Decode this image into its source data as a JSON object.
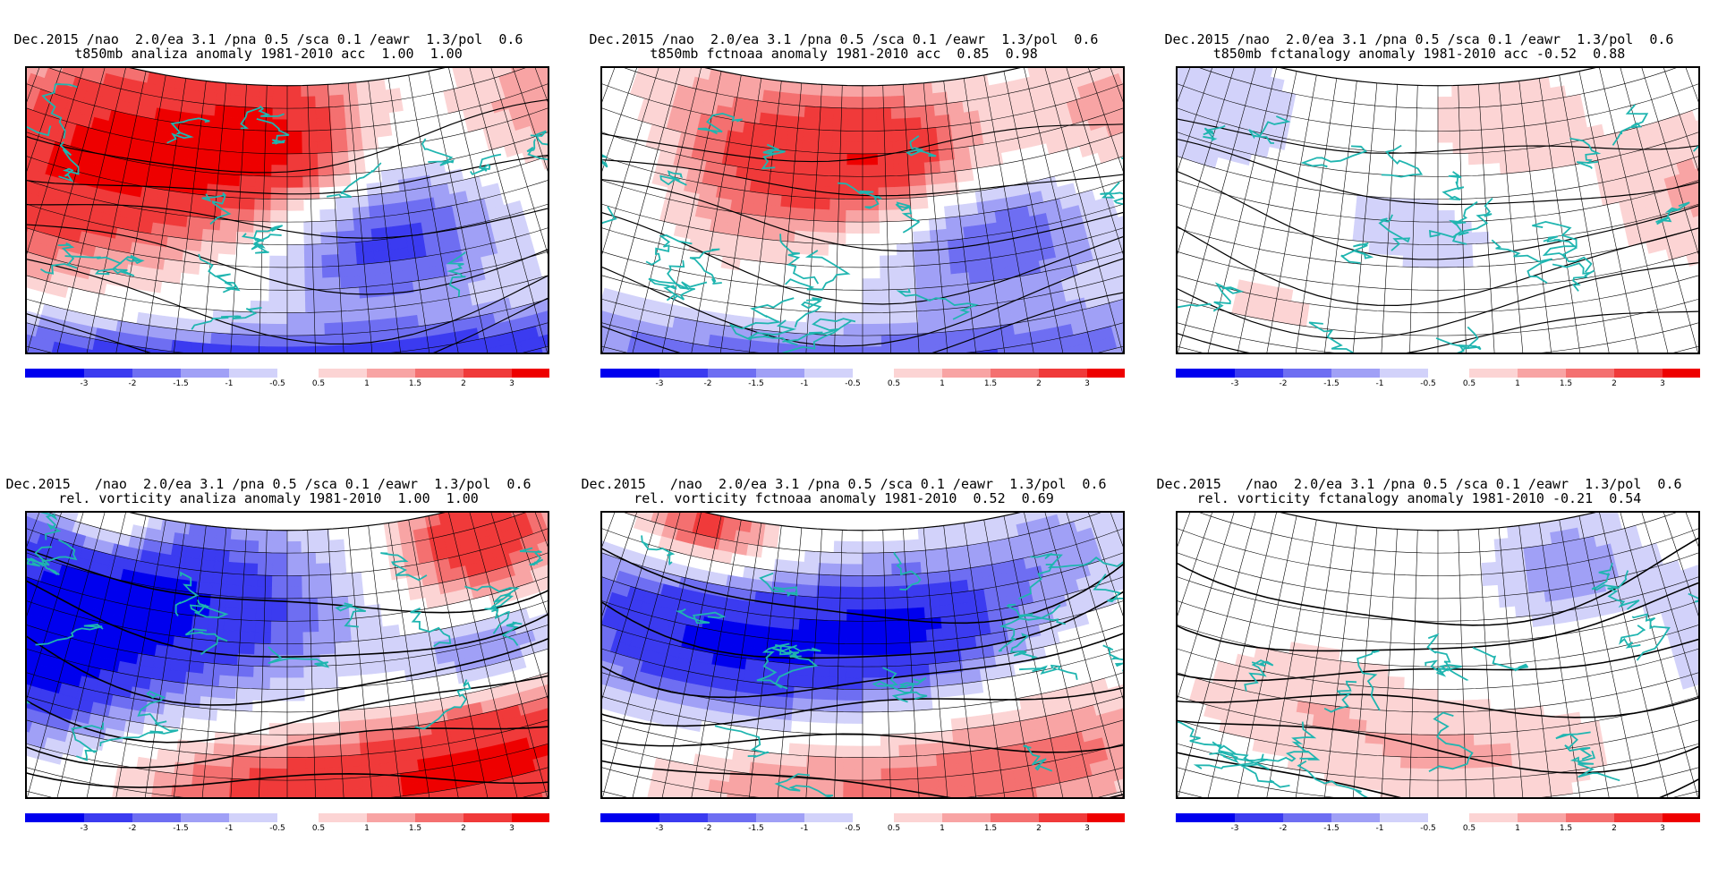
{
  "panels": [
    {
      "title1": "Dec.2015 /nao  2.0/ea 3.1 /pna 0.5 /sca 0.1 /eawr  1.3/pol  0.6",
      "title2": "t850mb analiza anomaly 1981-2010 acc  1.00  1.00",
      "pattern": "analysis-t850"
    },
    {
      "title1": "Dec.2015 /nao  2.0/ea 3.1 /pna 0.5 /sca 0.1 /eawr  1.3/pol  0.6",
      "title2": "t850mb fctnoaa anomaly 1981-2010 acc  0.85  0.98",
      "pattern": "noaa-t850"
    },
    {
      "title1": "Dec.2015 /nao  2.0/ea 3.1 /pna 0.5 /sca 0.1 /eawr  1.3/pol  0.6",
      "title2": "t850mb fctanalogy anomaly 1981-2010 acc -0.52  0.88",
      "pattern": "analog-t850"
    },
    {
      "title1": "Dec.2015   /nao  2.0/ea 3.1 /pna 0.5 /sca 0.1 /eawr  1.3/pol  0.6",
      "title2": "rel. vorticity analiza anomaly 1981-2010  1.00  1.00",
      "pattern": "analysis-vort"
    },
    {
      "title1": "Dec.2015   /nao  2.0/ea 3.1 /pna 0.5 /sca 0.1 /eawr  1.3/pol  0.6",
      "title2": "rel. vorticity fctnoaa anomaly 1981-2010  0.52  0.69",
      "pattern": "noaa-vort"
    },
    {
      "title1": "Dec.2015   /nao  2.0/ea 3.1 /pna 0.5 /sca 0.1 /eawr  1.3/pol  0.6",
      "title2": "rel. vorticity fctanalogy anomaly 1981-2010 -0.21  0.54",
      "pattern": "analog-vort"
    }
  ],
  "colorbar": {
    "labels": [
      "-3",
      "-2",
      "-1.5",
      "-1",
      "-0.5",
      "0.5",
      "1",
      "1.5",
      "2",
      "3"
    ],
    "colors": [
      "#0000ee",
      "#3b3bf0",
      "#6e6ef2",
      "#a0a0f6",
      "#d2d2fa",
      "#ffffff",
      "#fcd4d4",
      "#f8a4a4",
      "#f47070",
      "#f03a3a",
      "#ee0000"
    ]
  }
}
